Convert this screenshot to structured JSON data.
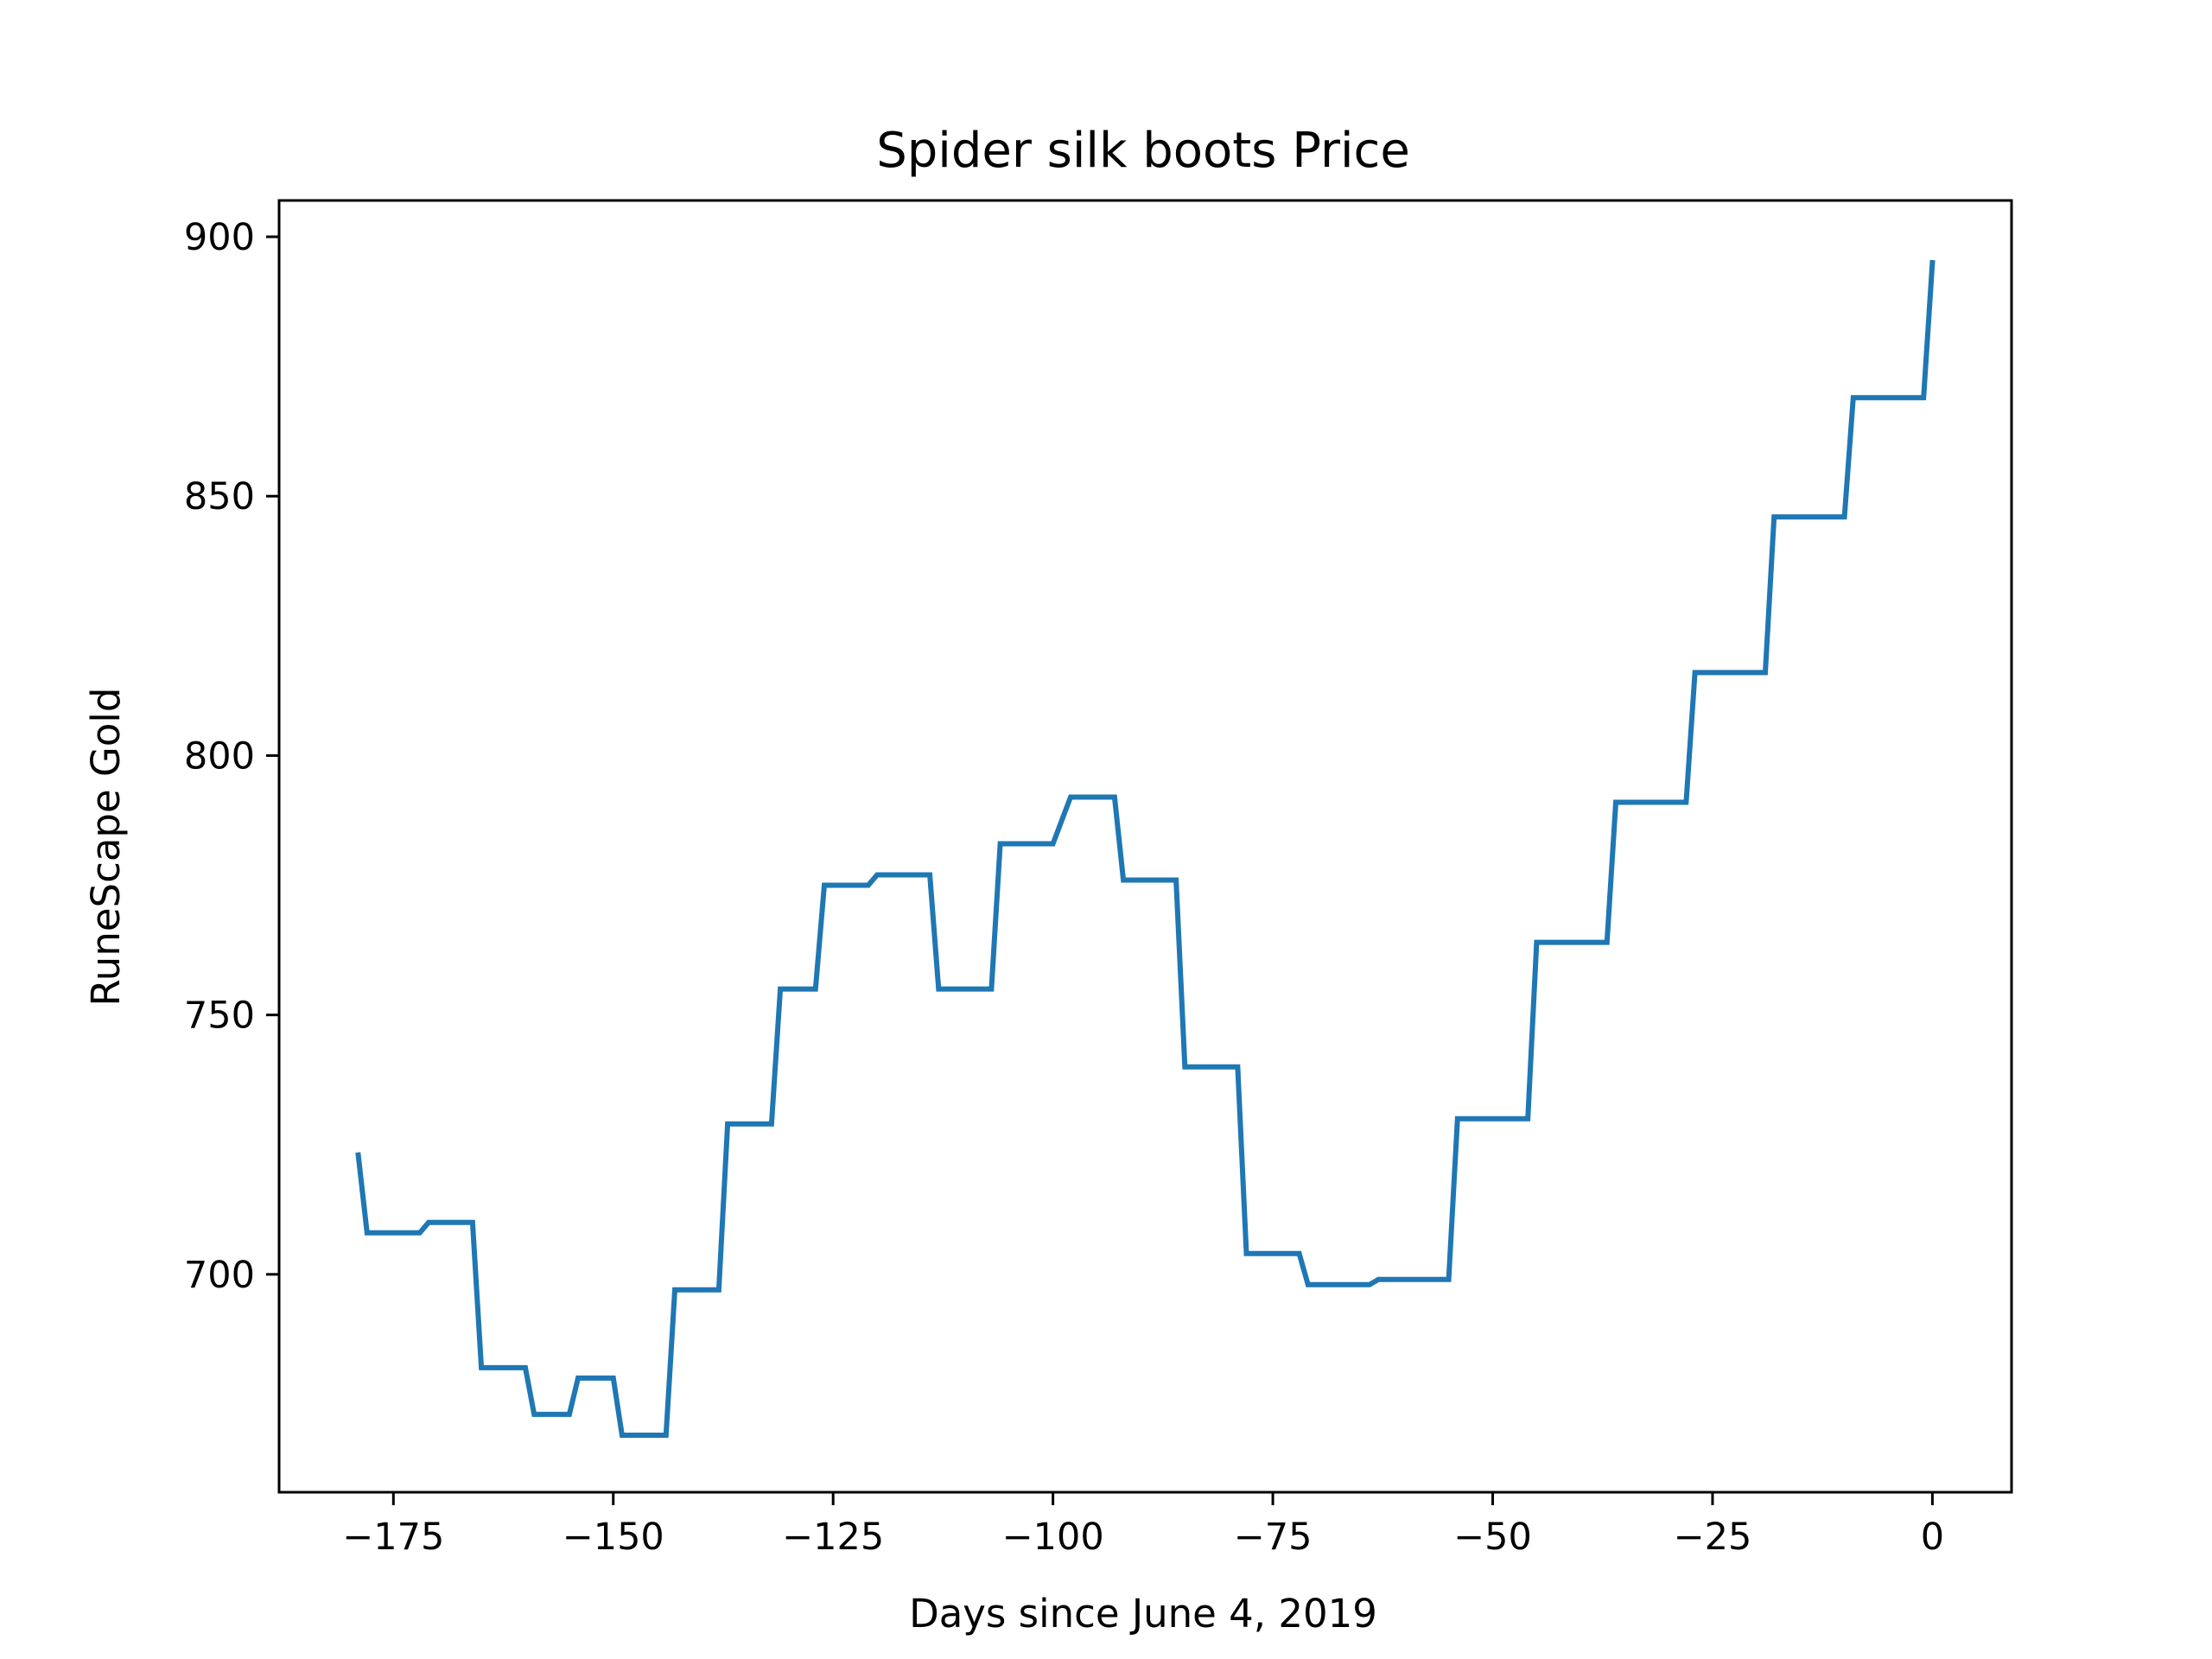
{
  "chart_data": {
    "type": "line",
    "title": "Spider silk boots Price",
    "xlabel": "Days since June 4, 2019",
    "ylabel": "RuneScape Gold",
    "xlim": [
      -188,
      9
    ],
    "ylim": [
      658,
      907
    ],
    "xticks": [
      -175,
      -150,
      -125,
      -100,
      -75,
      -50,
      -25,
      0
    ],
    "xtick_labels": [
      "−175",
      "−150",
      "−125",
      "−100",
      "−75",
      "−50",
      "−25",
      "0"
    ],
    "yticks": [
      700,
      750,
      800,
      850,
      900
    ],
    "ytick_labels": [
      "700",
      "750",
      "800",
      "850",
      "900"
    ],
    "grid": false,
    "series": [
      {
        "color": "#1f77b4",
        "x": [
          -179,
          -178,
          -172,
          -171,
          -166,
          -165,
          -160,
          -159,
          -155,
          -154,
          -150,
          -149,
          -144,
          -143,
          -138,
          -137,
          -132,
          -131,
          -127,
          -126,
          -121,
          -120,
          -114,
          -113,
          -107,
          -106,
          -101,
          -100,
          -98,
          -97,
          -93,
          -92,
          -86,
          -85,
          -79,
          -78,
          -72,
          -71,
          -64,
          -63,
          -55,
          -54,
          -46,
          -45,
          -37,
          -36,
          -28,
          -27,
          -19,
          -18,
          -10,
          -9,
          -1,
          0
        ],
        "y": [
          723,
          708,
          708,
          710,
          710,
          682,
          682,
          673,
          673,
          680,
          680,
          669,
          669,
          697,
          697,
          729,
          729,
          755,
          755,
          775,
          775,
          777,
          777,
          755,
          755,
          783,
          783,
          783,
          792,
          792,
          792,
          776,
          776,
          740,
          740,
          704,
          704,
          698,
          698,
          699,
          699,
          730,
          730,
          764,
          764,
          791,
          791,
          816,
          816,
          846,
          846,
          869,
          869,
          895
        ]
      }
    ]
  }
}
